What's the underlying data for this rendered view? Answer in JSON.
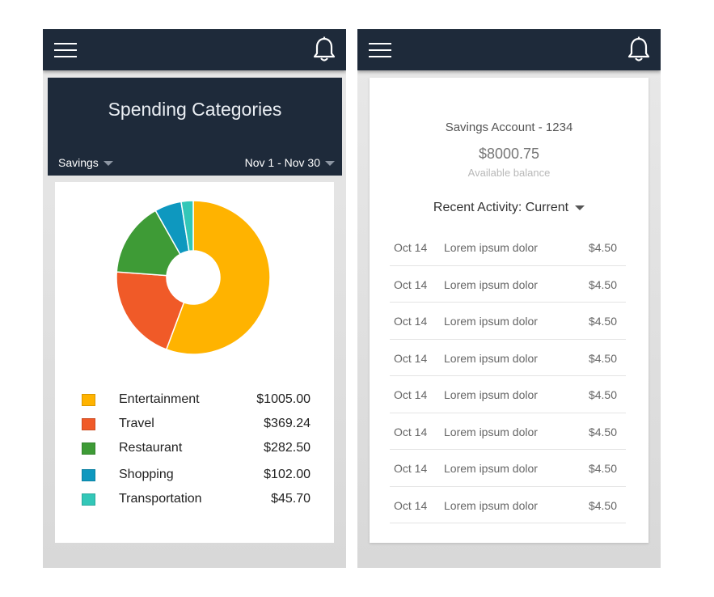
{
  "left_screen": {
    "title": "Spending Categories",
    "account_dropdown": "Savings",
    "date_range_dropdown": "Nov 1 - Nov 30",
    "chart_data": {
      "type": "pie",
      "categories": [
        "Entertainment",
        "Travel",
        "Restaurant",
        "Shopping",
        "Transportation"
      ],
      "values": [
        1005.0,
        369.24,
        282.5,
        102.0,
        45.7
      ],
      "colors": [
        "#ffb300",
        "#f05a28",
        "#3e9b36",
        "#0e98bf",
        "#33c7b8"
      ],
      "donut": true
    },
    "legend": [
      {
        "name": "Entertainment",
        "value": "$1005.00",
        "color": "#ffb300"
      },
      {
        "name": "Travel",
        "value": "$369.24",
        "color": "#f05a28"
      },
      {
        "name": "Restaurant",
        "value": "$282.50",
        "color": "#3e9b36"
      },
      {
        "name": "Shopping",
        "value": "$102.00",
        "color": "#0e98bf"
      },
      {
        "name": "Transportation",
        "value": "$45.70",
        "color": "#33c7b8"
      }
    ]
  },
  "right_screen": {
    "account_name": "Savings Account - 1234",
    "balance": "$8000.75",
    "balance_label": "Available balance",
    "recent_activity": "Recent Activity: Current",
    "transactions": [
      {
        "date": "Oct 14",
        "desc": "Lorem ipsum dolor",
        "amount": "$4.50"
      },
      {
        "date": "Oct 14",
        "desc": "Lorem ipsum dolor",
        "amount": "$4.50"
      },
      {
        "date": "Oct 14",
        "desc": "Lorem ipsum dolor",
        "amount": "$4.50"
      },
      {
        "date": "Oct 14",
        "desc": "Lorem ipsum dolor",
        "amount": "$4.50"
      },
      {
        "date": "Oct 14",
        "desc": "Lorem ipsum dolor",
        "amount": "$4.50"
      },
      {
        "date": "Oct 14",
        "desc": "Lorem ipsum dolor",
        "amount": "$4.50"
      },
      {
        "date": "Oct 14",
        "desc": "Lorem ipsum dolor",
        "amount": "$4.50"
      },
      {
        "date": "Oct 14",
        "desc": "Lorem ipsum dolor",
        "amount": "$4.50"
      }
    ]
  },
  "icons": [
    "menu-icon",
    "bell-icon"
  ],
  "colors": {
    "appbar": "#1e2a3a",
    "header": "#1e2a3a"
  }
}
